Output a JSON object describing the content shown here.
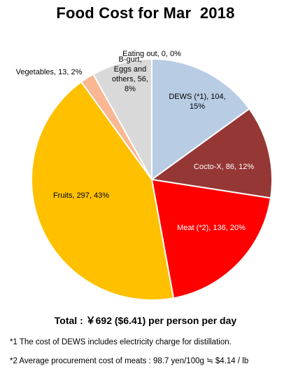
{
  "chart_data": {
    "type": "pie",
    "title": "Food Cost for Mar  2018",
    "slices": [
      {
        "label": "Eating out",
        "value": 0,
        "percent": "0%",
        "color": "#4472c4",
        "text": [
          "Eating out, 0, 0%"
        ]
      },
      {
        "label": "DEWS (*1)",
        "value": 104,
        "percent": "15%",
        "color": "#b8cce4",
        "text": [
          "DEWS (*1), 104,",
          "15%"
        ]
      },
      {
        "label": "Cocto-X",
        "value": 86,
        "percent": "12%",
        "color": "#953735",
        "text": [
          "Cocto-X, 86, 12%"
        ]
      },
      {
        "label": "Meat (*2)",
        "value": 136,
        "percent": "20%",
        "color": "#ff0000",
        "text": [
          "Meat (*2), 136, 20%"
        ]
      },
      {
        "label": "Fruits",
        "value": 297,
        "percent": "43%",
        "color": "#ffc000",
        "text": [
          "Fruits, 297, 43%"
        ]
      },
      {
        "label": "Vegetables",
        "value": 13,
        "percent": "2%",
        "color": "#fab792",
        "text": [
          "Vegetables, 13, 2%"
        ]
      },
      {
        "label": "B-gurt, Eggs and others",
        "value": 56,
        "percent": "8%",
        "color": "#d9d9d9",
        "text": [
          "B-gurt,",
          "Eggs and",
          "others, 56,",
          "8%"
        ]
      }
    ]
  },
  "total_text": "Total : ￥692 ($6.41) per person per day",
  "footnotes": {
    "note1": "*1 The cost of DEWS includes electricity charge for distillation.",
    "note2": "*2 Average procurement cost of meats : 98.7 yen/100g ≒ $4.14 / lb"
  }
}
